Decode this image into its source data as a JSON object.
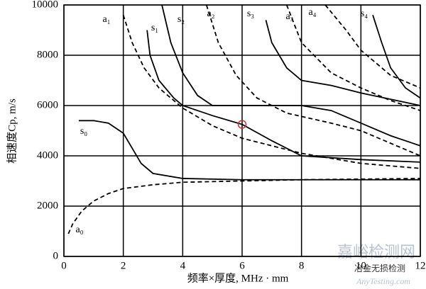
{
  "chart_data": {
    "type": "line",
    "xlabel": "频率×厚度, MHz · mm",
    "ylabel": "相速度Cp, m/s",
    "xlim": [
      0,
      12
    ],
    "xticks": [
      0,
      2,
      4,
      6,
      8,
      10,
      12
    ],
    "ylim": [
      0,
      10000
    ],
    "yticks": [
      0,
      2000,
      4000,
      6000,
      8000,
      10000
    ],
    "grid": true,
    "series": [
      {
        "name": "a₀",
        "color": "#000000",
        "dashed": true,
        "x": [
          0.15,
          0.3,
          0.6,
          1,
          1.5,
          2,
          3,
          4,
          6,
          8,
          12
        ],
        "y": [
          900,
          1300,
          1800,
          2200,
          2500,
          2700,
          2850,
          2950,
          3000,
          3050,
          3100
        ]
      },
      {
        "name": "s₀",
        "color": "#000000",
        "dashed": false,
        "x": [
          0.5,
          1,
          1.5,
          2,
          2.3,
          2.6,
          3,
          4,
          6,
          8,
          12
        ],
        "y": [
          5400,
          5400,
          5300,
          4900,
          4300,
          3700,
          3300,
          3100,
          3050,
          3050,
          3050
        ]
      },
      {
        "name": "a₁",
        "color": "#000000",
        "dashed": true,
        "x": [
          2.0,
          2.3,
          2.7,
          3.2,
          4,
          5,
          6,
          8,
          10,
          12
        ],
        "y": [
          9600,
          8500,
          7500,
          6700,
          5900,
          5200,
          4700,
          4100,
          3700,
          3500
        ]
      },
      {
        "name": "s₁",
        "color": "#000000",
        "dashed": false,
        "x": [
          2.8,
          2.9,
          3.2,
          3.7,
          4,
          5,
          6,
          7,
          8,
          10,
          12
        ],
        "y": [
          9000,
          8000,
          7000,
          6300,
          6000,
          5600,
          5250,
          4600,
          4000,
          3850,
          3750
        ]
      },
      {
        "name": "s₂",
        "color": "#000000",
        "dashed": false,
        "x": [
          3.3,
          3.6,
          4,
          4.5,
          5,
          6,
          8,
          9,
          10,
          11,
          12
        ],
        "y": [
          10000,
          8500,
          7300,
          6400,
          6000,
          6000,
          6000,
          5800,
          5300,
          4800,
          4400
        ]
      },
      {
        "name": "a₂",
        "color": "#000000",
        "dashed": true,
        "x": [
          4.8,
          5.2,
          5.8,
          6.5,
          7.5,
          9,
          10,
          11,
          12
        ],
        "y": [
          10000,
          8500,
          7200,
          6300,
          5700,
          5300,
          5000,
          4500,
          4000
        ]
      },
      {
        "name": "s₃",
        "color": "#000000",
        "dashed": false,
        "x": [
          6.8,
          7,
          7.5,
          8,
          9,
          10,
          12
        ],
        "y": [
          9400,
          8500,
          7500,
          7000,
          6800,
          6500,
          6000
        ]
      },
      {
        "name": "a₃",
        "color": "#000000",
        "dashed": true,
        "x": [
          7.5,
          8,
          9,
          10,
          11,
          12
        ],
        "y": [
          10000,
          8500,
          7300,
          6700,
          6200,
          5800
        ]
      },
      {
        "name": "a₄",
        "color": "#000000",
        "dashed": true,
        "x": [
          8.8,
          9.5,
          10,
          11,
          12
        ],
        "y": [
          10000,
          9000,
          8200,
          7200,
          6700
        ]
      },
      {
        "name": "s₄",
        "color": "#000000",
        "dashed": false,
        "x": [
          10.4,
          10.7,
          11,
          11.5,
          12
        ],
        "y": [
          9600,
          8500,
          7500,
          6700,
          6300
        ]
      }
    ],
    "marker": {
      "x": 6,
      "y": 5250,
      "color": "#d03030"
    },
    "watermark": [
      "嘉峪检测网",
      "冶金无损检测",
      "AnyTesting.com"
    ]
  }
}
